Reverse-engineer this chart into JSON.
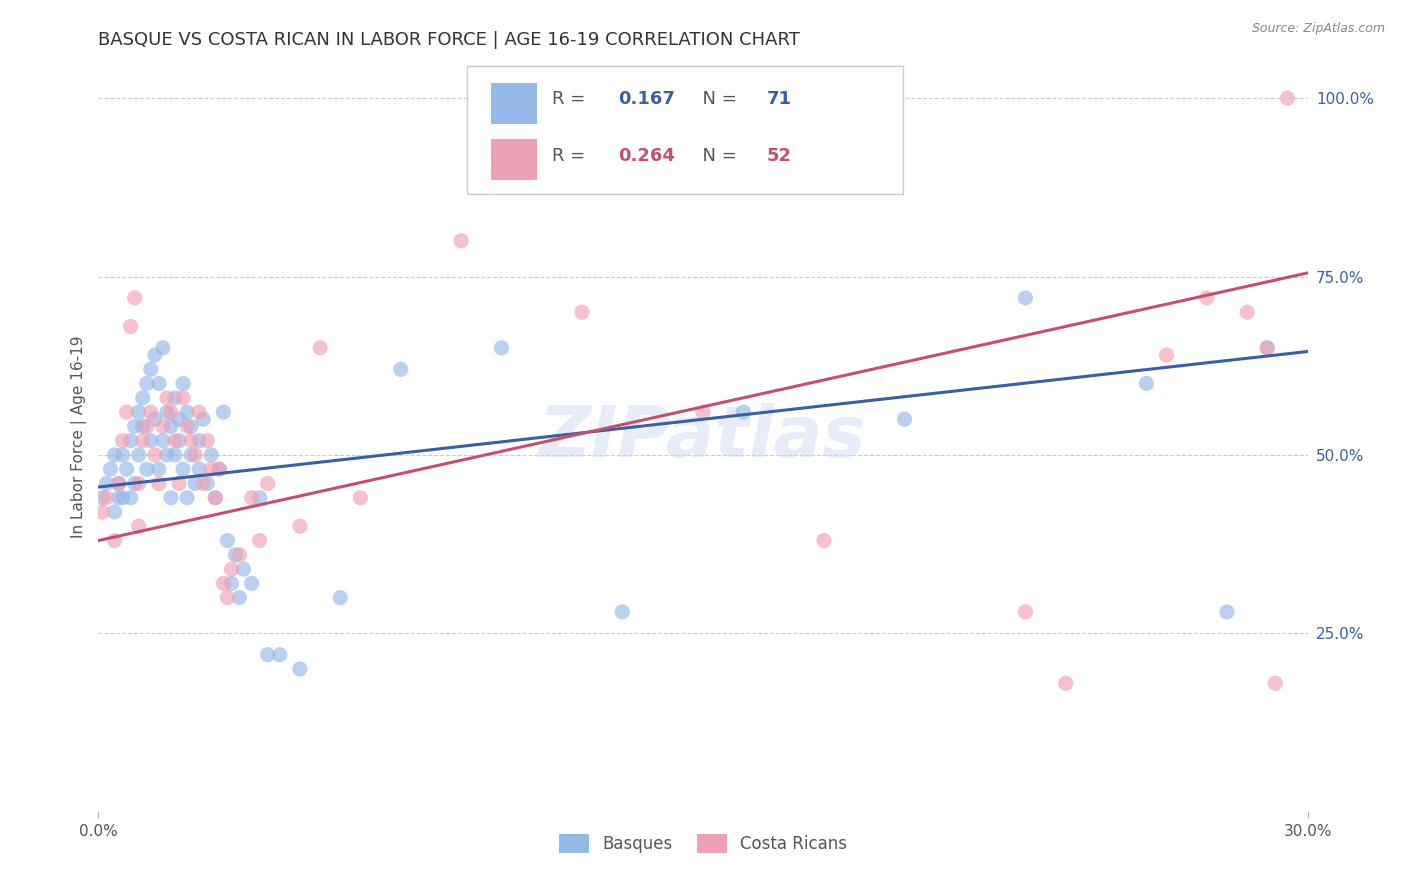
{
  "title": "BASQUE VS COSTA RICAN IN LABOR FORCE | AGE 16-19 CORRELATION CHART",
  "source": "Source: ZipAtlas.com",
  "ylabel": "In Labor Force | Age 16-19",
  "watermark": "ZIPatlas",
  "xlim": [
    0.0,
    0.3
  ],
  "ylim": [
    0.0,
    1.05
  ],
  "ytick_positions": [
    0.25,
    0.5,
    0.75,
    1.0
  ],
  "ytick_labels": [
    "25.0%",
    "50.0%",
    "75.0%",
    "100.0%"
  ],
  "blue_scatter_color": "#94b8e8",
  "pink_scatter_color": "#f0a0b5",
  "blue_line_color": "#3c5fa0",
  "pink_line_color": "#c45070",
  "legend_blue_fill": "#94b8e8",
  "legend_pink_fill": "#f0a0b5",
  "legend_border": "#cccccc",
  "grid_color": "#cccccc",
  "background_color": "#ffffff",
  "title_fontsize": 13,
  "axis_label_fontsize": 11,
  "tick_label_fontsize": 11,
  "legend_fontsize": 13,
  "basque_R_str": "0.167",
  "basque_N_str": "71",
  "costarican_R_str": "0.264",
  "costarican_N_str": "52",
  "basque_scatter_x": [
    0.001,
    0.002,
    0.003,
    0.004,
    0.004,
    0.005,
    0.005,
    0.006,
    0.006,
    0.007,
    0.008,
    0.008,
    0.009,
    0.009,
    0.01,
    0.01,
    0.011,
    0.011,
    0.012,
    0.012,
    0.013,
    0.013,
    0.014,
    0.014,
    0.015,
    0.015,
    0.016,
    0.016,
    0.017,
    0.017,
    0.018,
    0.018,
    0.019,
    0.019,
    0.02,
    0.02,
    0.021,
    0.021,
    0.022,
    0.022,
    0.023,
    0.023,
    0.024,
    0.025,
    0.025,
    0.026,
    0.027,
    0.028,
    0.029,
    0.03,
    0.031,
    0.032,
    0.033,
    0.034,
    0.035,
    0.036,
    0.038,
    0.04,
    0.042,
    0.045,
    0.05,
    0.06,
    0.075,
    0.1,
    0.13,
    0.16,
    0.2,
    0.23,
    0.26,
    0.28,
    0.29
  ],
  "basque_scatter_y": [
    0.44,
    0.46,
    0.48,
    0.42,
    0.5,
    0.44,
    0.46,
    0.5,
    0.44,
    0.48,
    0.52,
    0.44,
    0.54,
    0.46,
    0.5,
    0.56,
    0.54,
    0.58,
    0.6,
    0.48,
    0.52,
    0.62,
    0.55,
    0.64,
    0.6,
    0.48,
    0.52,
    0.65,
    0.56,
    0.5,
    0.54,
    0.44,
    0.58,
    0.5,
    0.52,
    0.55,
    0.6,
    0.48,
    0.56,
    0.44,
    0.5,
    0.54,
    0.46,
    0.52,
    0.48,
    0.55,
    0.46,
    0.5,
    0.44,
    0.48,
    0.56,
    0.38,
    0.32,
    0.36,
    0.3,
    0.34,
    0.32,
    0.44,
    0.22,
    0.22,
    0.2,
    0.3,
    0.62,
    0.65,
    0.28,
    0.56,
    0.55,
    0.72,
    0.6,
    0.28,
    0.65
  ],
  "costarican_scatter_x": [
    0.001,
    0.002,
    0.004,
    0.005,
    0.006,
    0.007,
    0.008,
    0.009,
    0.01,
    0.01,
    0.011,
    0.012,
    0.013,
    0.014,
    0.015,
    0.016,
    0.017,
    0.018,
    0.019,
    0.02,
    0.021,
    0.022,
    0.023,
    0.024,
    0.025,
    0.026,
    0.027,
    0.028,
    0.029,
    0.03,
    0.031,
    0.032,
    0.033,
    0.035,
    0.038,
    0.04,
    0.042,
    0.05,
    0.055,
    0.065,
    0.09,
    0.12,
    0.15,
    0.18,
    0.23,
    0.24,
    0.265,
    0.275,
    0.285,
    0.29,
    0.292,
    0.295
  ],
  "costarican_scatter_y": [
    0.42,
    0.44,
    0.38,
    0.46,
    0.52,
    0.56,
    0.68,
    0.72,
    0.4,
    0.46,
    0.52,
    0.54,
    0.56,
    0.5,
    0.46,
    0.54,
    0.58,
    0.56,
    0.52,
    0.46,
    0.58,
    0.54,
    0.52,
    0.5,
    0.56,
    0.46,
    0.52,
    0.48,
    0.44,
    0.48,
    0.32,
    0.3,
    0.34,
    0.36,
    0.44,
    0.38,
    0.46,
    0.4,
    0.65,
    0.44,
    0.8,
    0.7,
    0.56,
    0.38,
    0.28,
    0.18,
    0.64,
    0.72,
    0.7,
    0.65,
    0.18,
    1.0
  ]
}
